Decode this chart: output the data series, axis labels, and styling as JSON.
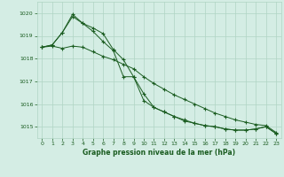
{
  "title": "Graphe pression niveau de la mer (hPa)",
  "background_color": "#d4ede4",
  "grid_color": "#b0d4c4",
  "line_color": "#1a5c20",
  "xlim": [
    -0.5,
    23.5
  ],
  "ylim": [
    1014.5,
    1020.5
  ],
  "yticks": [
    1015,
    1016,
    1017,
    1018,
    1019,
    1020
  ],
  "xticks": [
    0,
    1,
    2,
    3,
    4,
    5,
    6,
    7,
    8,
    9,
    10,
    11,
    12,
    13,
    14,
    15,
    16,
    17,
    18,
    19,
    20,
    21,
    22,
    23
  ],
  "series": [
    [
      1018.5,
      1018.55,
      1018.45,
      1018.55,
      1018.5,
      1018.3,
      1018.1,
      1017.95,
      1017.75,
      1017.55,
      1017.2,
      1016.9,
      1016.65,
      1016.4,
      1016.2,
      1016.0,
      1015.8,
      1015.6,
      1015.45,
      1015.3,
      1015.2,
      1015.1,
      1015.05,
      1014.75
    ],
    [
      1018.5,
      1018.6,
      1019.15,
      1019.85,
      1019.55,
      1019.2,
      1018.75,
      1018.35,
      1017.2,
      1017.2,
      1016.15,
      1015.85,
      1015.65,
      1015.45,
      1015.3,
      1015.15,
      1015.05,
      1015.0,
      1014.9,
      1014.85,
      1014.85,
      1014.9,
      1015.0,
      1014.7
    ],
    [
      1018.5,
      1018.6,
      1019.15,
      1019.95,
      1019.55,
      1019.35,
      1019.1,
      1018.4,
      1017.95,
      1017.2,
      1016.45,
      1015.85,
      1015.65,
      1015.45,
      1015.25,
      1015.15,
      1015.05,
      1015.0,
      1014.9,
      1014.85,
      1014.85,
      1014.9,
      1015.0,
      1014.7
    ]
  ]
}
